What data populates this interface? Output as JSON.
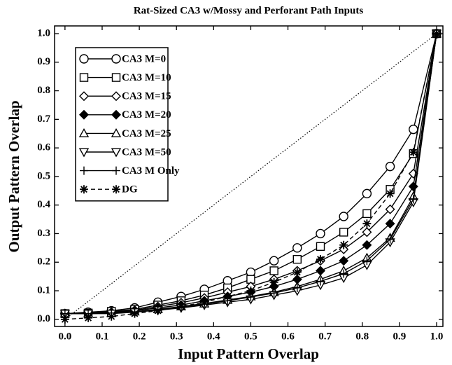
{
  "chart_data": {
    "type": "line",
    "title": "Rat-Sized CA3 w/Mossy and Perforant Path Inputs",
    "xlabel": "Input Pattern Overlap",
    "ylabel": "Output Pattern Overlap",
    "x": [
      0,
      0.0625,
      0.125,
      0.1875,
      0.25,
      0.3125,
      0.375,
      0.4375,
      0.5,
      0.5625,
      0.625,
      0.6875,
      0.75,
      0.8125,
      0.875,
      0.9375,
      1
    ],
    "series": [
      {
        "name": "CA3 M=0",
        "color": "#000000",
        "marker": "circle",
        "linestyle": "solid",
        "values": [
          0.02,
          0.025,
          0.03,
          0.04,
          0.06,
          0.08,
          0.105,
          0.135,
          0.165,
          0.205,
          0.25,
          0.3,
          0.36,
          0.44,
          0.535,
          0.665,
          1.0
        ]
      },
      {
        "name": "CA3 M=10",
        "color": "#000000",
        "marker": "square",
        "linestyle": "solid",
        "values": [
          0.02,
          0.022,
          0.028,
          0.035,
          0.05,
          0.065,
          0.085,
          0.11,
          0.14,
          0.17,
          0.21,
          0.255,
          0.305,
          0.37,
          0.455,
          0.58,
          1.0
        ]
      },
      {
        "name": "CA3 M=15",
        "color": "#000000",
        "marker": "diamond",
        "linestyle": "solid",
        "values": [
          0.02,
          0.02,
          0.025,
          0.032,
          0.045,
          0.058,
          0.075,
          0.095,
          0.115,
          0.14,
          0.17,
          0.205,
          0.245,
          0.305,
          0.385,
          0.51,
          1.0
        ]
      },
      {
        "name": "CA3 M=20",
        "color": "#000000",
        "marker": "diamond-filled",
        "linestyle": "solid",
        "values": [
          0.02,
          0.02,
          0.023,
          0.03,
          0.04,
          0.05,
          0.065,
          0.08,
          0.095,
          0.115,
          0.14,
          0.17,
          0.205,
          0.26,
          0.335,
          0.465,
          1.0
        ]
      },
      {
        "name": "CA3 M=25",
        "color": "#000000",
        "marker": "triangle",
        "linestyle": "solid",
        "values": [
          0.02,
          0.02,
          0.022,
          0.027,
          0.035,
          0.045,
          0.055,
          0.068,
          0.08,
          0.095,
          0.115,
          0.14,
          0.17,
          0.215,
          0.285,
          0.43,
          1.0
        ]
      },
      {
        "name": "CA3 M=50",
        "color": "#000000",
        "marker": "triangle-down",
        "linestyle": "solid",
        "values": [
          0.02,
          0.02,
          0.02,
          0.025,
          0.032,
          0.04,
          0.05,
          0.06,
          0.07,
          0.085,
          0.1,
          0.12,
          0.145,
          0.19,
          0.27,
          0.41,
          1.0
        ]
      },
      {
        "name": "CA3 M Only",
        "color": "#000000",
        "marker": "plus",
        "linestyle": "solid",
        "values": [
          0.02,
          0.02,
          0.022,
          0.026,
          0.034,
          0.043,
          0.053,
          0.065,
          0.078,
          0.092,
          0.11,
          0.133,
          0.16,
          0.205,
          0.28,
          0.42,
          1.0
        ]
      },
      {
        "name": "DG",
        "color": "#000000",
        "marker": "star",
        "linestyle": "dashed",
        "values": [
          0.0,
          0.005,
          0.01,
          0.02,
          0.03,
          0.045,
          0.06,
          0.08,
          0.1,
          0.13,
          0.165,
          0.21,
          0.26,
          0.335,
          0.44,
          0.585,
          1.0
        ]
      }
    ],
    "xlim": [
      -0.028,
      1.017
    ],
    "ylim": [
      -0.025,
      1.027
    ],
    "xticks": [
      {
        "value": 0,
        "label": "0.0"
      },
      0.1,
      0.2,
      0.3,
      0.4,
      0.5,
      0.6,
      0.7,
      0.8,
      0.9,
      {
        "value": 1,
        "label": "1.0"
      }
    ],
    "yticks": [
      {
        "value": 0,
        "label": "0.0"
      },
      0.1,
      0.2,
      0.3,
      0.4,
      0.5,
      0.6,
      0.7,
      0.8,
      0.9,
      {
        "value": 1,
        "label": "1.0"
      }
    ],
    "legend": "upper left"
  }
}
